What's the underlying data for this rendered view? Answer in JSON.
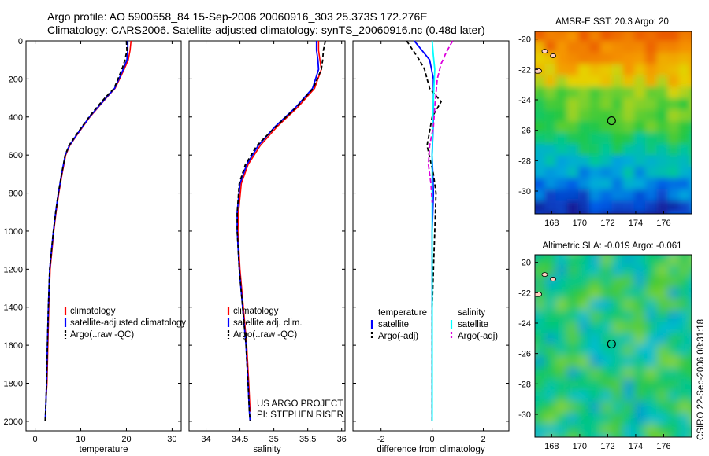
{
  "header": {
    "line1": "Argo profile: AO 5900558_84 15-Sep-2006 20060916_303 25.373S 172.276E",
    "line2": "Climatology: CARS2006. Satellite-adjusted climatology: synTS_20060916.nc (0.48d later)"
  },
  "colors": {
    "climatology": "#ff0000",
    "satellite": "#0000ff",
    "argo": "#000000",
    "salinity_satellite": "#00ffff",
    "salinity_argo": "#dd00dd"
  },
  "note": {
    "line1": "US ARGO PROJECT",
    "line2": "PI: STEPHEN RISER"
  },
  "side_label": "CSIRO  22-Sep-2006 08:31:18",
  "map_sst_title": "AMSR-E SST: 20.3  Argo: 20",
  "map_sla_title": "Altimetric SLA: -0.019  Argo: -0.061",
  "chart_data": [
    {
      "type": "line",
      "name": "temperature-profile",
      "xlabel": "temperature",
      "ylabel": "",
      "xlim": [
        -2,
        32
      ],
      "ylim": [
        0,
        2050
      ],
      "y_reversed": true,
      "xticks": [
        0,
        10,
        20,
        30
      ],
      "yticks": [
        0,
        200,
        400,
        600,
        800,
        1000,
        1200,
        1400,
        1600,
        1800,
        2000
      ],
      "legend": [
        "climatology",
        "satellite-adjusted climatology",
        "Argo(..raw -QC)"
      ],
      "legend_placement": "bottom-right",
      "series": [
        {
          "name": "climatology",
          "x": [
            21.0,
            20.8,
            20.4,
            19.5,
            17.5,
            15.6,
            13.8,
            12.0,
            10.5,
            9.0,
            7.6,
            6.7,
            5.9,
            5.2,
            4.6,
            4.1,
            3.7,
            3.3,
            3.0,
            2.8,
            2.6,
            2.4
          ],
          "y": [
            0,
            50,
            100,
            150,
            250,
            300,
            350,
            400,
            450,
            500,
            550,
            600,
            700,
            800,
            900,
            1000,
            1100,
            1200,
            1400,
            1600,
            1800,
            1880
          ]
        },
        {
          "name": "satellite-adjusted climatology",
          "x": [
            20.3,
            20.3,
            20.1,
            19.3,
            17.4,
            15.5,
            13.7,
            11.9,
            10.4,
            8.9,
            7.5,
            6.6,
            5.8,
            5.1,
            4.5,
            4.0,
            3.6,
            3.2,
            2.9,
            2.7,
            2.5,
            2.3,
            2.2
          ],
          "y": [
            0,
            50,
            100,
            150,
            250,
            300,
            350,
            400,
            450,
            500,
            550,
            600,
            700,
            800,
            900,
            1000,
            1100,
            1200,
            1400,
            1600,
            1800,
            1950,
            2000
          ]
        },
        {
          "name": "Argo(..raw -QC)",
          "x": [
            20.0,
            20.1,
            19.7,
            19.0,
            17.3,
            15.3,
            13.5,
            11.8,
            10.3,
            8.8,
            7.4,
            6.6,
            5.8,
            5.1,
            4.5,
            4.0,
            3.6,
            3.2,
            2.9,
            2.7,
            2.5,
            2.3,
            2.2
          ],
          "y": [
            0,
            50,
            100,
            150,
            250,
            300,
            350,
            400,
            450,
            500,
            550,
            600,
            700,
            800,
            900,
            1000,
            1100,
            1200,
            1400,
            1600,
            1800,
            1950,
            2000
          ]
        }
      ]
    },
    {
      "type": "line",
      "name": "salinity-profile",
      "xlabel": "salinity",
      "ylabel": "",
      "xlim": [
        33.75,
        36.05
      ],
      "ylim": [
        0,
        2050
      ],
      "y_reversed": true,
      "xticks": [
        34,
        34.5,
        35,
        35.5,
        36
      ],
      "yticks": [
        0,
        200,
        400,
        600,
        800,
        1000,
        1200,
        1400,
        1600,
        1800,
        2000
      ],
      "legend": [
        "climatology",
        "satellite adj. clim.",
        "Argo(..raw -QC)"
      ],
      "legend_placement": "bottom-right",
      "series": [
        {
          "name": "climatology",
          "x": [
            35.66,
            35.66,
            35.68,
            35.7,
            35.6,
            35.35,
            35.05,
            34.8,
            34.62,
            34.52,
            34.48,
            34.47,
            34.5,
            34.55,
            34.6,
            34.63,
            34.65
          ],
          "y": [
            0,
            50,
            100,
            150,
            250,
            350,
            450,
            550,
            650,
            750,
            900,
            1000,
            1200,
            1400,
            1600,
            1800,
            1950
          ]
        },
        {
          "name": "satellite adj. clim.",
          "x": [
            35.63,
            35.63,
            35.65,
            35.66,
            35.57,
            35.32,
            35.02,
            34.77,
            34.6,
            34.5,
            34.46,
            34.46,
            34.49,
            34.54,
            34.59,
            34.62,
            34.64,
            34.65
          ],
          "y": [
            0,
            50,
            100,
            150,
            250,
            350,
            450,
            550,
            650,
            750,
            900,
            1000,
            1200,
            1400,
            1600,
            1800,
            1950,
            2000
          ]
        },
        {
          "name": "Argo(..raw -QC)",
          "x": [
            35.76,
            35.73,
            35.72,
            35.7,
            35.58,
            35.33,
            35.03,
            34.75,
            34.58,
            34.49,
            34.46,
            34.46,
            34.49,
            34.54,
            34.59,
            34.62,
            34.64,
            34.65
          ],
          "y": [
            0,
            50,
            100,
            150,
            250,
            350,
            450,
            550,
            650,
            750,
            900,
            1000,
            1200,
            1400,
            1600,
            1800,
            1950,
            2000
          ]
        }
      ]
    },
    {
      "type": "line",
      "name": "difference-profile",
      "xlabel": "difference from climatology",
      "ylabel": "",
      "xlim": [
        -3.1,
        3.0
      ],
      "ylim": [
        0,
        2050
      ],
      "y_reversed": true,
      "xticks": [
        -2,
        0,
        2
      ],
      "yticks": [
        0,
        200,
        400,
        600,
        800,
        1000,
        1200,
        1400,
        1600,
        1800,
        2000
      ],
      "legend_groups": [
        {
          "heading": "temperature",
          "entries": [
            "satellite",
            "Argo(-adj)"
          ]
        },
        {
          "heading": "salinity",
          "entries": [
            "satellite",
            "Argo(-adj)"
          ]
        }
      ],
      "legend_placement": "lower-middle",
      "series": [
        {
          "name": "temperature satellite",
          "x": [
            -0.7,
            -0.4,
            -0.1,
            0.05,
            0.05,
            0.0,
            0.05,
            0.0,
            0.0,
            0.0,
            0.0
          ],
          "y": [
            0,
            50,
            100,
            200,
            400,
            600,
            800,
            1000,
            1400,
            1800,
            2000
          ]
        },
        {
          "name": "temperature Argo(-adj)",
          "x": [
            -1.0,
            -0.8,
            -0.5,
            -0.3,
            -0.1,
            0.35,
            0.0,
            -0.2,
            0.05,
            0.15,
            0.1,
            0.0,
            0.0
          ],
          "y": [
            0,
            40,
            100,
            150,
            250,
            320,
            400,
            550,
            700,
            800,
            1000,
            1400,
            2000
          ]
        },
        {
          "name": "salinity satellite",
          "x": [
            0.0,
            0.05,
            0.1,
            0.05,
            0.0,
            0.0,
            0.0,
            0.0,
            0.0
          ],
          "y": [
            0,
            80,
            150,
            300,
            600,
            1000,
            1400,
            1800,
            2000
          ]
        },
        {
          "name": "salinity Argo(-adj)",
          "x": [
            0.8,
            0.55,
            0.35,
            0.2,
            0.1,
            0.05,
            -0.1,
            -0.15,
            -0.05,
            0.0
          ],
          "y": [
            0,
            60,
            120,
            200,
            350,
            450,
            550,
            650,
            750,
            850
          ]
        }
      ]
    },
    {
      "type": "heatmap",
      "name": "sst-map",
      "title": "AMSR-E SST: 20.3  Argo: 20",
      "xlim": [
        166.8,
        178.0
      ],
      "ylim": [
        -31.5,
        -19.5
      ],
      "xticks": [
        168,
        170,
        172,
        174,
        176
      ],
      "yticks": [
        -20,
        -22,
        -24,
        -26,
        -28,
        -30
      ],
      "float_position": [
        172.276,
        -25.373
      ]
    },
    {
      "type": "heatmap",
      "name": "sla-map",
      "title": "Altimetric SLA: -0.019  Argo: -0.061",
      "xlim": [
        166.8,
        178.0
      ],
      "ylim": [
        -31.5,
        -19.5
      ],
      "xticks": [
        168,
        170,
        172,
        174,
        176
      ],
      "yticks": [
        -20,
        -22,
        -24,
        -26,
        -28,
        -30
      ],
      "float_position": [
        172.276,
        -25.373
      ]
    }
  ]
}
